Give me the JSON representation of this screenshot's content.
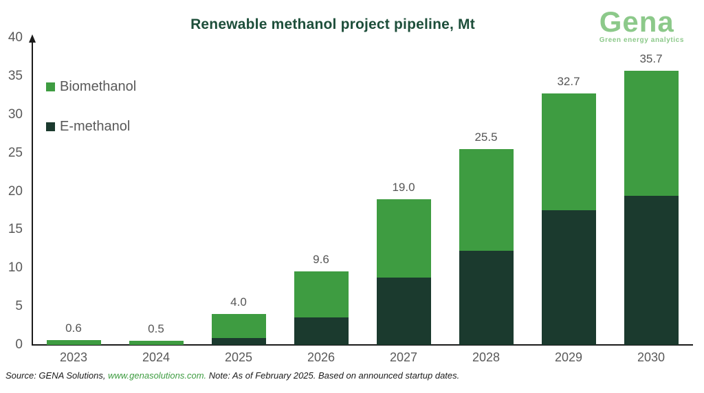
{
  "title": "Renewable methanol project pipeline, Mt",
  "logo": {
    "wordmark": "Gena",
    "tagline": "Green energy analytics"
  },
  "legend": [
    {
      "label": "Biomethanol",
      "color": "#3E9C41"
    },
    {
      "label": "E-methanol",
      "color": "#1B3A2E"
    }
  ],
  "source": {
    "prefix": "Source: GENA Solutions, ",
    "link": "www.genasolutions.com.",
    "suffix": " Note: As of February 2025. Based on announced startup dates."
  },
  "colors": {
    "biomethanol": "#3E9C41",
    "e_methanol": "#1B3A2E",
    "title": "#1D4E3A",
    "logo": "#8CC98A",
    "axis_text": "#595959",
    "data_label": "#555555",
    "axis_line": "#1a1a1a",
    "source_link": "#3E9C41"
  },
  "chart_data": {
    "type": "bar",
    "stacked": true,
    "title": "Renewable methanol project pipeline, Mt",
    "xlabel": "",
    "ylabel": "",
    "unit": "Mt",
    "categories": [
      "2023",
      "2024",
      "2025",
      "2026",
      "2027",
      "2028",
      "2029",
      "2030"
    ],
    "series": [
      {
        "name": "E-methanol",
        "color": "#1B3A2E",
        "values": [
          0,
          0,
          0.9,
          3.6,
          8.8,
          12.3,
          17.5,
          19.4
        ]
      },
      {
        "name": "Biomethanol",
        "color": "#3E9C41",
        "values": [
          0.6,
          0.5,
          3.1,
          6.0,
          10.2,
          13.2,
          15.2,
          16.3
        ]
      }
    ],
    "totals": [
      0.6,
      0.5,
      4.0,
      9.6,
      19.0,
      25.5,
      32.7,
      35.7
    ],
    "total_labels": [
      "0.6",
      "0.5",
      "4.0",
      "9.6",
      "19.0",
      "25.5",
      "32.7",
      "35.7"
    ],
    "yticks": [
      0,
      5,
      10,
      15,
      20,
      25,
      30,
      35,
      40
    ],
    "ylim": [
      0,
      40
    ],
    "gridlines": false,
    "legend_position": "top-left-inside"
  }
}
